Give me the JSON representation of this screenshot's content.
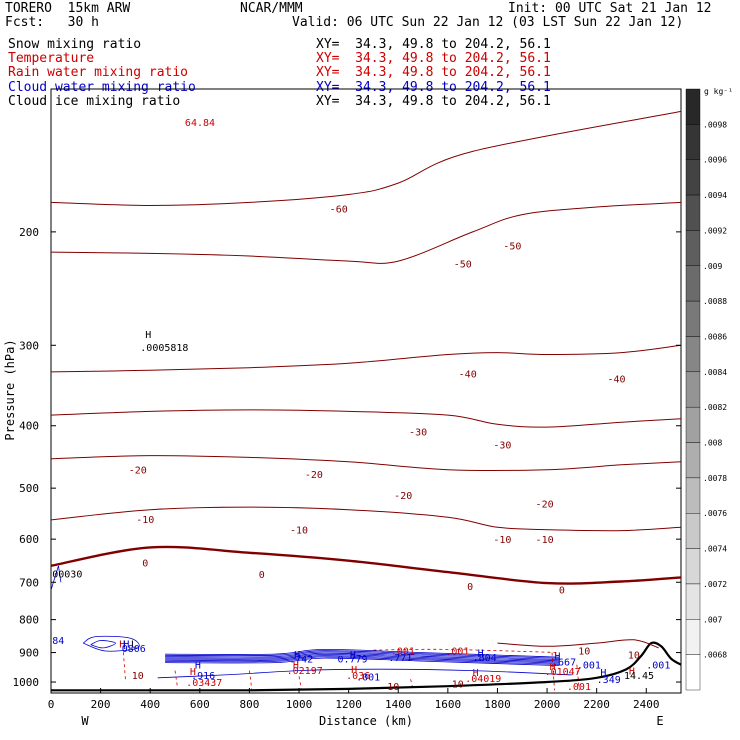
{
  "header": {
    "title_left": "TORERO  15km ARW",
    "title_center": "NCAR/MMM",
    "init": "Init: 00 UTC Sat 21 Jan 12",
    "fcst": "Fcst:   30 h",
    "valid": "Valid: 06 UTC Sun 22 Jan 12 (03 LST Sun 22 Jan 12)"
  },
  "fields": [
    {
      "name": "Snow mixing ratio",
      "xy": "XY=  34.3, 49.8 to 204.2, 56.1",
      "color": "#000000"
    },
    {
      "name": "Temperature",
      "xy": "XY=  34.3, 49.8 to 204.2, 56.1",
      "color": "#cc0000"
    },
    {
      "name": "Rain water mixing ratio",
      "xy": "XY=  34.3, 49.8 to 204.2, 56.1",
      "color": "#cc0000"
    },
    {
      "name": "Cloud water mixing ratio",
      "xy": "XY=  34.3, 49.8 to 204.2, 56.1",
      "color": "#0000cc"
    },
    {
      "name": "Cloud ice mixing ratio",
      "xy": "XY=  34.3, 49.8 to 204.2, 56.1",
      "color": "#000000"
    }
  ],
  "chart_data": {
    "type": "contour",
    "xlabel": "Distance (km)",
    "ylabel": "Pressure (hPa)",
    "x_ticks": [
      0,
      200,
      400,
      600,
      800,
      1000,
      1200,
      1400,
      1600,
      1800,
      2000,
      2200,
      2400
    ],
    "y_ticks": [
      200,
      300,
      400,
      500,
      600,
      700,
      800,
      900,
      1000
    ],
    "xlim": [
      0,
      2540
    ],
    "ylim_hpa": [
      1040,
      120
    ],
    "y_scale": "log",
    "left_end_label": "W",
    "right_end_label": "E",
    "temperature_contours": [
      {
        "value": -60,
        "label": "-60",
        "points": [
          [
            0,
            180
          ],
          [
            400,
            182
          ],
          [
            800,
            180
          ],
          [
            1200,
            175
          ],
          [
            1400,
            168
          ],
          [
            1700,
            150
          ],
          [
            2540,
            130
          ]
        ]
      },
      {
        "value": -50,
        "label": "-50",
        "points": [
          [
            0,
            215
          ],
          [
            400,
            216
          ],
          [
            800,
            218
          ],
          [
            1200,
            222
          ],
          [
            1400,
            222
          ],
          [
            1700,
            200
          ],
          [
            1900,
            188
          ],
          [
            2200,
            183
          ],
          [
            2540,
            180
          ]
        ]
      },
      {
        "value": -40,
        "label": "-40",
        "points": [
          [
            0,
            330
          ],
          [
            400,
            328
          ],
          [
            800,
            325
          ],
          [
            1200,
            320
          ],
          [
            1600,
            310
          ],
          [
            1800,
            308
          ],
          [
            2000,
            310
          ],
          [
            2300,
            308
          ],
          [
            2540,
            300
          ]
        ]
      },
      {
        "value": -30,
        "label": "-30",
        "points": [
          [
            0,
            385
          ],
          [
            400,
            380
          ],
          [
            800,
            378
          ],
          [
            1200,
            380
          ],
          [
            1600,
            385
          ],
          [
            1800,
            398
          ],
          [
            2000,
            402
          ],
          [
            2300,
            395
          ],
          [
            2540,
            390
          ]
        ]
      },
      {
        "value": -20,
        "label": "-20",
        "points": [
          [
            0,
            450
          ],
          [
            400,
            445
          ],
          [
            800,
            448
          ],
          [
            1200,
            455
          ],
          [
            1600,
            468
          ],
          [
            2000,
            468
          ],
          [
            2300,
            460
          ],
          [
            2540,
            455
          ]
        ]
      },
      {
        "value": -10,
        "label": "-10",
        "points": [
          [
            0,
            560
          ],
          [
            400,
            540
          ],
          [
            800,
            535
          ],
          [
            1200,
            540
          ],
          [
            1600,
            555
          ],
          [
            1800,
            575
          ],
          [
            2000,
            580
          ],
          [
            2300,
            582
          ],
          [
            2540,
            575
          ]
        ]
      },
      {
        "value": 0,
        "label": "0",
        "points": [
          [
            0,
            660
          ],
          [
            400,
            618
          ],
          [
            800,
            630
          ],
          [
            1200,
            648
          ],
          [
            1600,
            675
          ],
          [
            2000,
            702
          ],
          [
            2300,
            698
          ],
          [
            2540,
            688
          ]
        ]
      },
      {
        "value": 10,
        "label": "10",
        "points": [
          [
            1800,
            870
          ],
          [
            2000,
            880
          ],
          [
            2200,
            870
          ],
          [
            2350,
            860
          ],
          [
            2450,
            885
          ]
        ]
      }
    ],
    "temperature_labels": [
      {
        "text": "-60",
        "x": 1160,
        "p": 184
      },
      {
        "text": "-50",
        "x": 1660,
        "p": 224
      },
      {
        "text": "-50",
        "x": 1860,
        "p": 210
      },
      {
        "text": "-40",
        "x": 1680,
        "p": 332
      },
      {
        "text": "-40",
        "x": 2280,
        "p": 338
      },
      {
        "text": "-30",
        "x": 1480,
        "p": 408
      },
      {
        "text": "-30",
        "x": 1820,
        "p": 428
      },
      {
        "text": "-20",
        "x": 350,
        "p": 468
      },
      {
        "text": "-20",
        "x": 1060,
        "p": 475
      },
      {
        "text": "-20",
        "x": 1420,
        "p": 512
      },
      {
        "text": "-20",
        "x": 1990,
        "p": 528
      },
      {
        "text": "-10",
        "x": 380,
        "p": 558
      },
      {
        "text": "-10",
        "x": 1000,
        "p": 580
      },
      {
        "text": "-10",
        "x": 1820,
        "p": 600
      },
      {
        "text": "-10",
        "x": 1990,
        "p": 600
      },
      {
        "text": "0",
        "x": 380,
        "p": 652
      },
      {
        "text": "0",
        "x": 850,
        "p": 680
      },
      {
        "text": "0",
        "x": 1690,
        "p": 710
      },
      {
        "text": "0",
        "x": 2060,
        "p": 718
      },
      {
        "text": "10",
        "x": 2150,
        "p": 893
      },
      {
        "text": "10",
        "x": 350,
        "p": 975
      },
      {
        "text": "10",
        "x": 1380,
        "p": 1015
      },
      {
        "text": "10",
        "x": 1640,
        "p": 1005
      },
      {
        "text": "10",
        "x": 2350,
        "p": 906
      }
    ],
    "annotations": [
      {
        "text": "H",
        "x": 380,
        "p": 288,
        "color": "#000000"
      },
      {
        "text": ".0005818",
        "x": 360,
        "p": 302,
        "color": "#000000"
      },
      {
        "text": "64.84",
        "x": 540,
        "p": 135,
        "color": "#cc0000"
      },
      {
        "text": "00030",
        "x": 5,
        "p": 678,
        "color": "#000000"
      },
      {
        "text": "84",
        "x": 5,
        "p": 860,
        "color": "#0000cc"
      },
      {
        "text": "H",
        "x": 275,
        "p": 872,
        "color": "#cc0000"
      },
      {
        "text": "H",
        "x": 292,
        "p": 872,
        "color": "#0000cc"
      },
      {
        "text": "L",
        "x": 322,
        "p": 872,
        "color": "#000000"
      },
      {
        "text": "0806",
        "x": 285,
        "p": 885,
        "color": "#0000cc"
      },
      {
        "text": "H",
        "x": 580,
        "p": 940,
        "color": "#0000cc"
      },
      {
        "text": ".916",
        "x": 565,
        "p": 975,
        "color": "#0000cc"
      },
      {
        "text": "H",
        "x": 560,
        "p": 962,
        "color": "#cc0000"
      },
      {
        "text": ".03437",
        "x": 545,
        "p": 1000,
        "color": "#cc0000"
      },
      {
        "text": "H",
        "x": 980,
        "p": 905,
        "color": "#0000cc"
      },
      {
        "text": ".742",
        "x": 960,
        "p": 920,
        "color": "#0000cc"
      },
      {
        "text": "H",
        "x": 1205,
        "p": 905,
        "color": "#0000cc"
      },
      {
        "text": "0.779",
        "x": 1155,
        "p": 920,
        "color": "#0000cc"
      },
      {
        "text": ".771",
        "x": 1360,
        "p": 915,
        "color": "#0000cc"
      },
      {
        "text": ".001",
        "x": 1370,
        "p": 893,
        "color": "#cc0000"
      },
      {
        "text": ".001",
        "x": 1590,
        "p": 893,
        "color": "#cc0000"
      },
      {
        "text": "H",
        "x": 1720,
        "p": 900,
        "color": "#0000cc"
      },
      {
        "text": ".804",
        "x": 1700,
        "p": 915,
        "color": "#0000cc"
      },
      {
        "text": "H",
        "x": 975,
        "p": 940,
        "color": "#cc0000"
      },
      {
        "text": ".02197",
        "x": 950,
        "p": 958,
        "color": "#cc0000"
      },
      {
        "text": "H",
        "x": 1210,
        "p": 955,
        "color": "#cc0000"
      },
      {
        "text": ".036",
        "x": 1190,
        "p": 975,
        "color": "#cc0000"
      },
      {
        "text": ".001",
        "x": 1230,
        "p": 980,
        "color": "#0000cc"
      },
      {
        "text": "H",
        "x": 1700,
        "p": 965,
        "color": "#cc0000"
      },
      {
        "text": ".04019",
        "x": 1670,
        "p": 985,
        "color": "#cc0000"
      },
      {
        "text": "H",
        "x": 2030,
        "p": 910,
        "color": "#0000cc"
      },
      {
        "text": ".667",
        "x": 2020,
        "p": 930,
        "color": "#0000cc"
      },
      {
        "text": "H",
        "x": 2010,
        "p": 945,
        "color": "#cc0000"
      },
      {
        "text": ".01047",
        "x": 1990,
        "p": 962,
        "color": "#cc0000"
      },
      {
        "text": ".001",
        "x": 2120,
        "p": 940,
        "color": "#0000cc"
      },
      {
        "text": "H",
        "x": 2215,
        "p": 965,
        "color": "#0000cc"
      },
      {
        "text": ".349",
        "x": 2200,
        "p": 990,
        "color": "#0000cc"
      },
      {
        "text": "H",
        "x": 2330,
        "p": 960,
        "color": "#cc0000"
      },
      {
        "text": "14.45",
        "x": 2310,
        "p": 975,
        "color": "#000000"
      },
      {
        "text": ".001",
        "x": 2080,
        "p": 1015,
        "color": "#cc0000"
      },
      {
        "text": ".001",
        "x": 2400,
        "p": 940,
        "color": "#0000cc"
      }
    ],
    "colorbar": {
      "unit": "g kg⁻¹",
      "labels": [
        ".0098",
        ".0096",
        ".0094",
        ".0092",
        ".009",
        ".0088",
        ".0086",
        ".0084",
        ".0082",
        ".008",
        ".0078",
        ".0076",
        ".0074",
        ".0072",
        ".007",
        ".0068"
      ]
    }
  }
}
